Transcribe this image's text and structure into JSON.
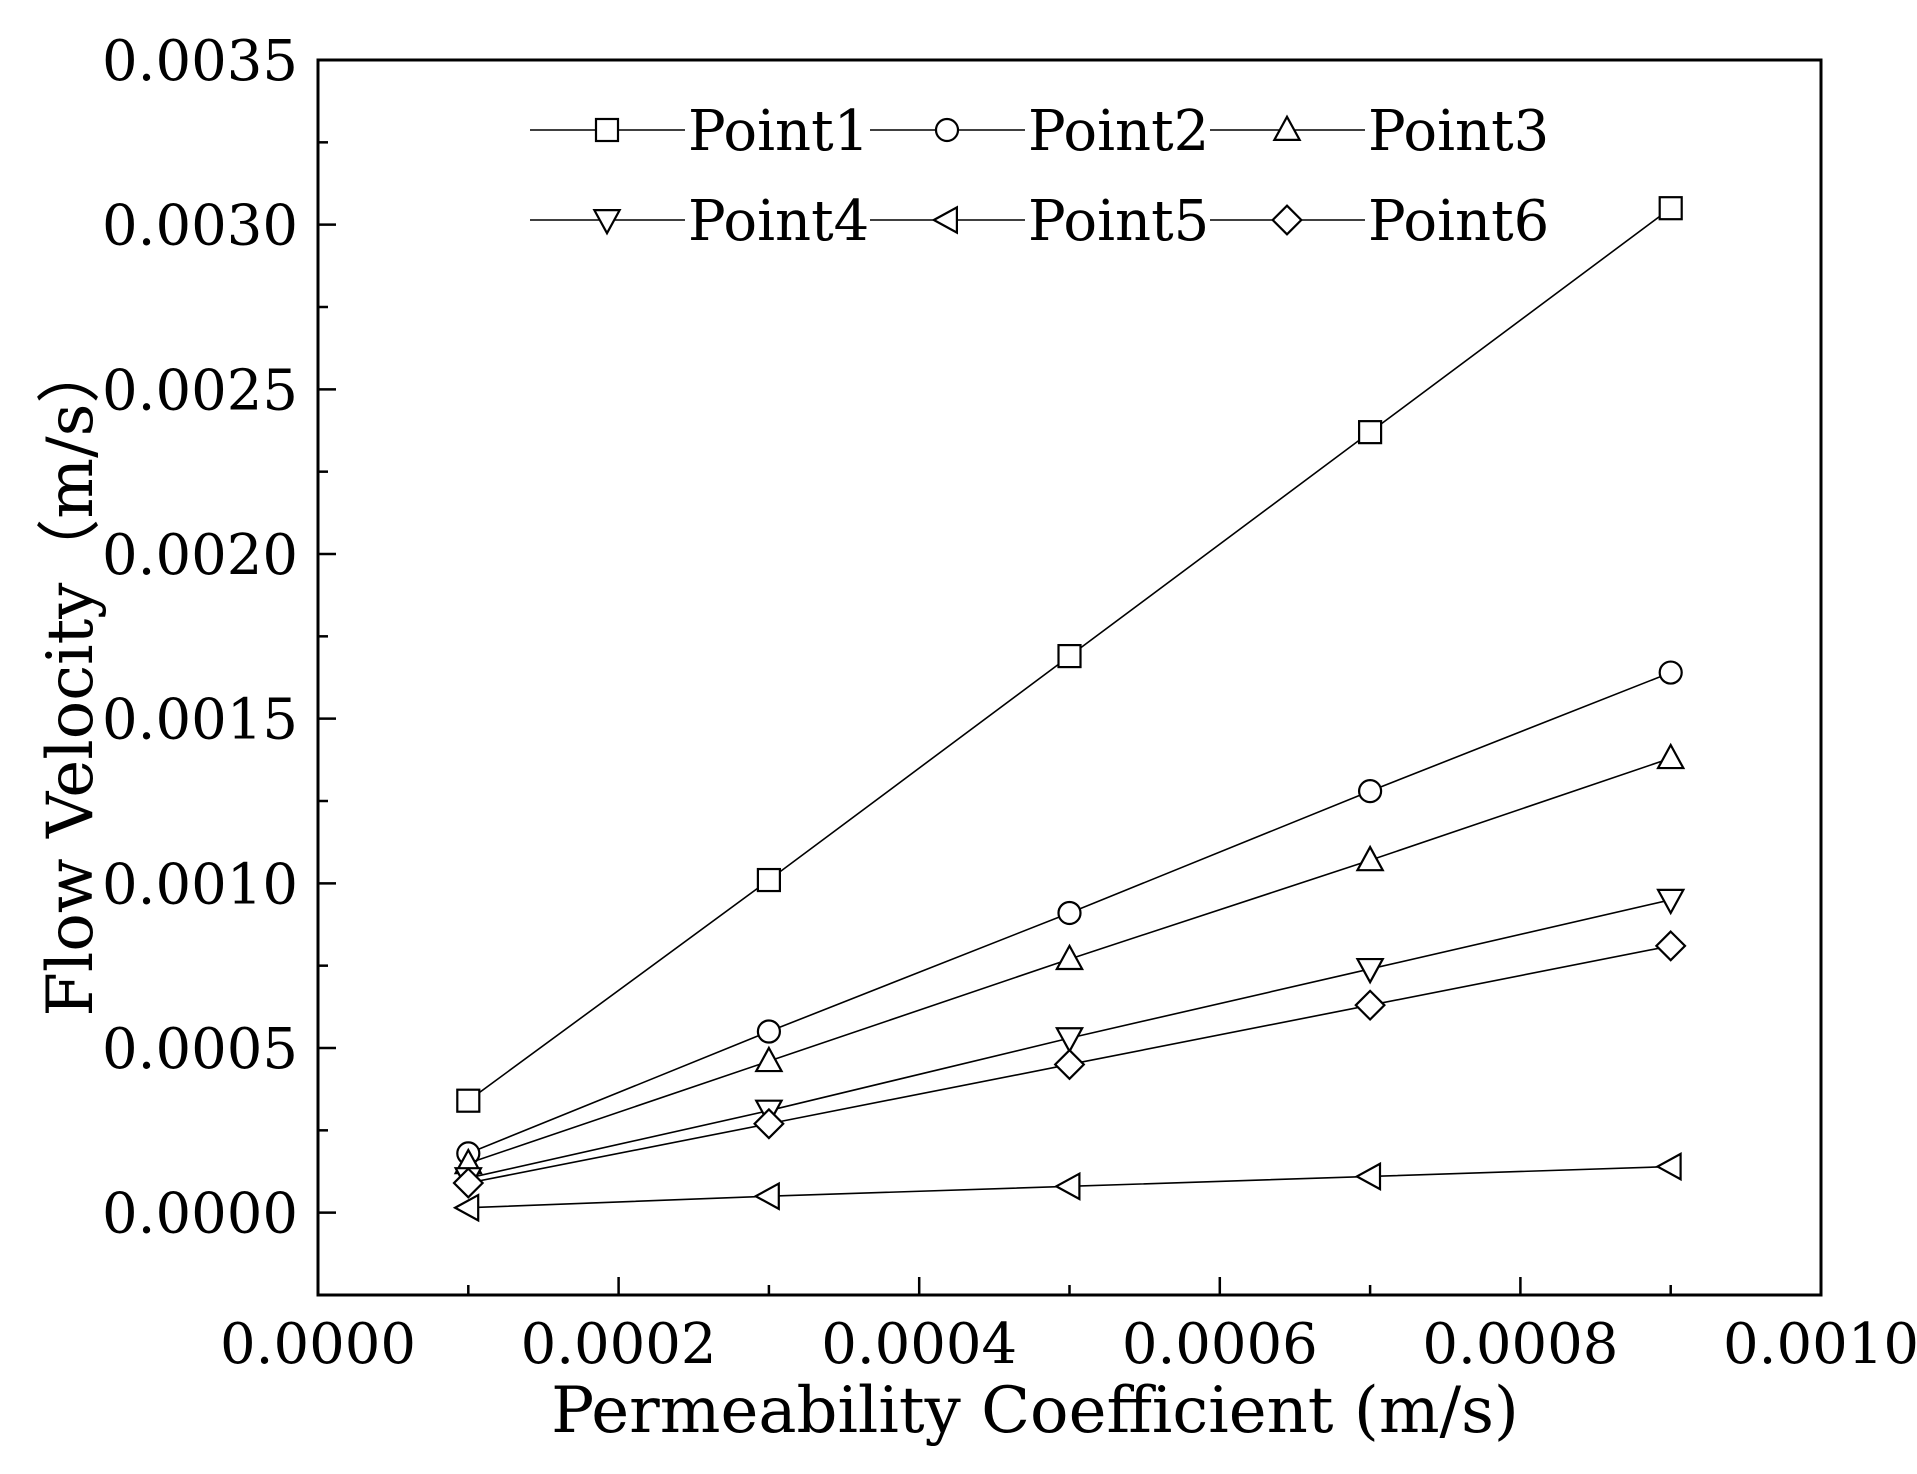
{
  "chart_data": {
    "type": "line",
    "title": "",
    "xlabel": "Permeability Coefficient (m/s)",
    "ylabel": "Flow Velocity（m/s）",
    "xlim": [
      0.0,
      0.001
    ],
    "ylim": [
      -0.00025,
      0.0035
    ],
    "x_ticks": [
      "0.0000",
      "0.0002",
      "0.0004",
      "0.0006",
      "0.0008",
      "0.0010"
    ],
    "y_ticks": [
      "0.0000",
      "0.0005",
      "0.0010",
      "0.0015",
      "0.0020",
      "0.0025",
      "0.0030",
      "0.0035"
    ],
    "grid": false,
    "legend_position": "top",
    "x": [
      0.0001,
      0.0003,
      0.0005,
      0.0007,
      0.0009
    ],
    "series": [
      {
        "name": "Point1",
        "marker": "square",
        "values": [
          0.00034,
          0.00101,
          0.00169,
          0.00237,
          0.00305
        ]
      },
      {
        "name": "Point2",
        "marker": "circle",
        "values": [
          0.00018,
          0.00055,
          0.00091,
          0.00128,
          0.00164
        ]
      },
      {
        "name": "Point3",
        "marker": "triangle-up",
        "values": [
          0.00015,
          0.00046,
          0.00077,
          0.00107,
          0.00138
        ]
      },
      {
        "name": "Point4",
        "marker": "triangle-down",
        "values": [
          0.000105,
          0.00031,
          0.00053,
          0.00074,
          0.00095
        ]
      },
      {
        "name": "Point5",
        "marker": "triangle-left",
        "values": [
          1.5e-05,
          5e-05,
          8e-05,
          0.00011,
          0.00014
        ]
      },
      {
        "name": "Point6",
        "marker": "diamond",
        "values": [
          9e-05,
          0.00027,
          0.00045,
          0.00063,
          0.00081
        ]
      }
    ],
    "colors": {
      "line": "#000000",
      "marker_fill": "#ffffff",
      "background": "#ffffff"
    }
  }
}
